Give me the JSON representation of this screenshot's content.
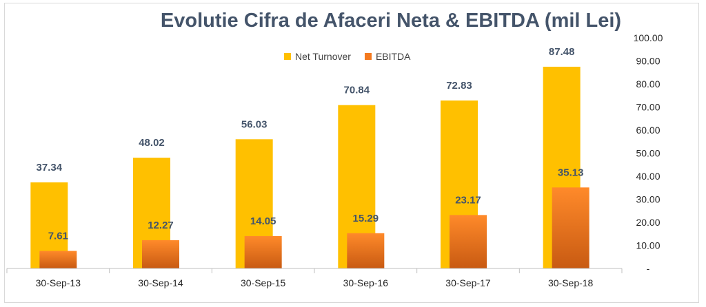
{
  "chart_data": {
    "type": "bar",
    "title": "Evolutie Cifra de Afaceri Neta & EBITDA (mil Lei)",
    "categories": [
      "30-Sep-13",
      "30-Sep-14",
      "30-Sep-15",
      "30-Sep-16",
      "30-Sep-17",
      "30-Sep-18"
    ],
    "series": [
      {
        "name": "Net Turnover",
        "values": [
          37.34,
          48.02,
          56.03,
          70.84,
          72.83,
          87.48
        ],
        "color": "#ffc000",
        "labels": [
          "37.34",
          "48.02",
          "56.03",
          "70.84",
          "72.83",
          "87.48"
        ]
      },
      {
        "name": "EBITDA",
        "values": [
          7.61,
          12.27,
          14.05,
          15.29,
          23.17,
          35.13
        ],
        "color": "#f47a1f",
        "labels": [
          "7.61",
          "12.27",
          "14.05",
          "15.29",
          "23.17",
          "35.13"
        ]
      }
    ],
    "ylim": [
      0,
      100
    ],
    "yticks": [
      "-",
      "10.00",
      "20.00",
      "30.00",
      "40.00",
      "50.00",
      "60.00",
      "70.00",
      "80.00",
      "90.00",
      "100.00"
    ],
    "y_axis_side": "right",
    "legend": "top-center",
    "grid": false
  }
}
